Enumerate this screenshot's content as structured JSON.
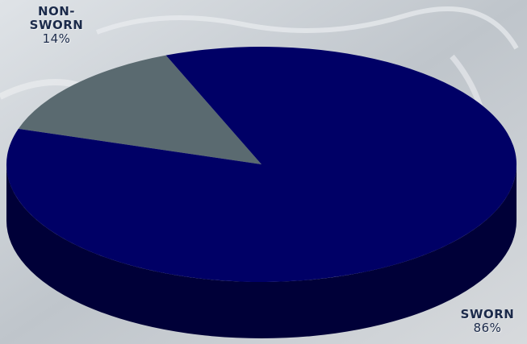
{
  "chart_data": {
    "type": "pie",
    "style": "3d",
    "categories": [
      "SWORN",
      "NON-SWORN"
    ],
    "values": [
      86,
      14
    ],
    "colors": [
      "#000066",
      "#5a6a70"
    ],
    "data_labels": [
      {
        "name_lines": [
          "SWORN"
        ],
        "value_label": "86%"
      },
      {
        "name_lines": [
          "NON-",
          "SWORN"
        ],
        "value_label": "14%"
      }
    ]
  }
}
